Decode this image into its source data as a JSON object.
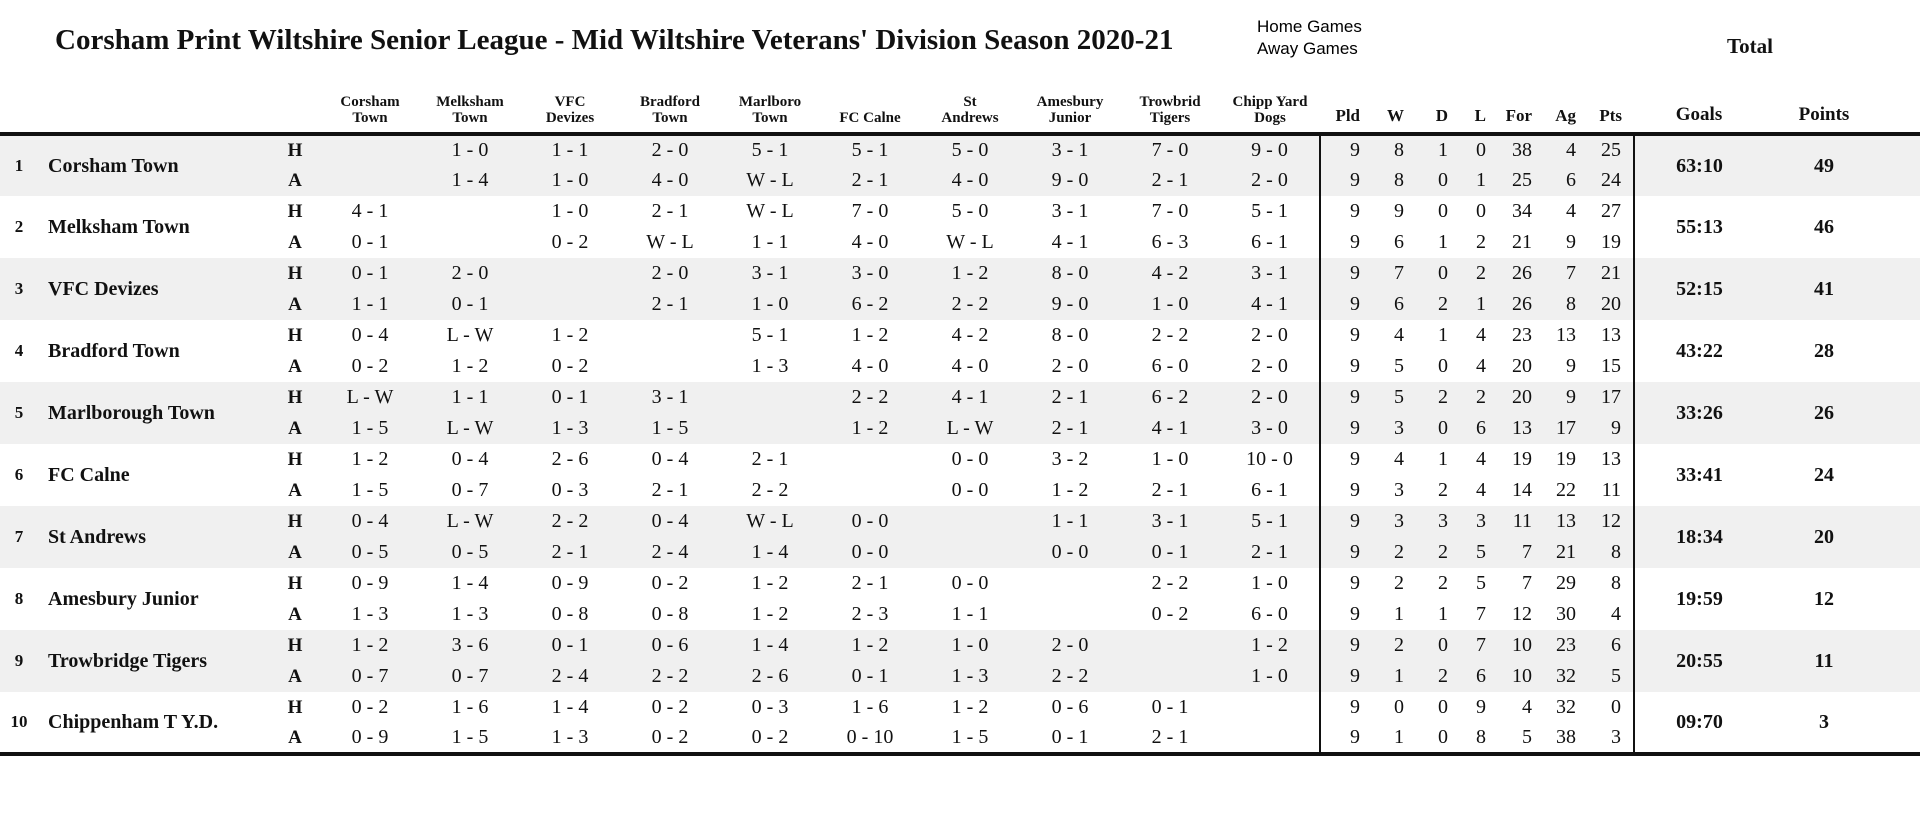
{
  "title": "Corsham Print Wiltshire Senior League - Mid Wiltshire Veterans' Division Season 2020-21",
  "legend": {
    "home": "Home Games",
    "away": "Away Games",
    "total": "Total"
  },
  "row_labels": {
    "home": "H",
    "away": "A"
  },
  "colors": {
    "block_shade": "#f0f0f0",
    "diagonal_shade": "#d8d8d8",
    "rule": "#111111"
  },
  "columns": {
    "opponents": [
      "Corsham\nTown",
      "Melksham\nTown",
      "VFC\nDevizes",
      "Bradford\nTown",
      "Marlboro\nTown",
      "FC Calne",
      "St\nAndrews",
      "Amesbury\nJunior",
      "Trowbrid\nTigers",
      "Chipp Yard\nDogs"
    ],
    "stats": [
      "Pld",
      "W",
      "D",
      "L",
      "For",
      "Ag",
      "Pts"
    ],
    "goals": "Goals",
    "points": "Points"
  },
  "teams": [
    {
      "rank": "1",
      "name": "Corsham Town",
      "home": {
        "scores": [
          "",
          "1 - 0",
          "1 - 1",
          "2 - 0",
          "5 - 1",
          "5 - 1",
          "5 - 0",
          "3 - 1",
          "7 - 0",
          "9 - 0"
        ],
        "stats": [
          "9",
          "8",
          "1",
          "0",
          "38",
          "4",
          "25"
        ]
      },
      "away": {
        "scores": [
          "",
          "1 - 4",
          "1 - 0",
          "4 - 0",
          "W - L",
          "2 - 1",
          "4 - 0",
          "9 - 0",
          "2 - 1",
          "2 - 0"
        ],
        "stats": [
          "9",
          "8",
          "0",
          "1",
          "25",
          "6",
          "24"
        ]
      },
      "goals": "63:10",
      "points": "49"
    },
    {
      "rank": "2",
      "name": "Melksham Town",
      "home": {
        "scores": [
          "4 - 1",
          "",
          "1 - 0",
          "2 - 1",
          "W - L",
          "7 - 0",
          "5 - 0",
          "3 - 1",
          "7 - 0",
          "5 - 1"
        ],
        "stats": [
          "9",
          "9",
          "0",
          "0",
          "34",
          "4",
          "27"
        ]
      },
      "away": {
        "scores": [
          "0 - 1",
          "",
          "0 - 2",
          "W - L",
          "1 - 1",
          "4 - 0",
          "W - L",
          "4 - 1",
          "6 - 3",
          "6 - 1"
        ],
        "stats": [
          "9",
          "6",
          "1",
          "2",
          "21",
          "9",
          "19"
        ]
      },
      "goals": "55:13",
      "points": "46"
    },
    {
      "rank": "3",
      "name": "VFC Devizes",
      "home": {
        "scores": [
          "0 - 1",
          "2 - 0",
          "",
          "2 - 0",
          "3 - 1",
          "3 - 0",
          "1 - 2",
          "8 - 0",
          "4 - 2",
          "3 - 1"
        ],
        "stats": [
          "9",
          "7",
          "0",
          "2",
          "26",
          "7",
          "21"
        ]
      },
      "away": {
        "scores": [
          "1 - 1",
          "0 - 1",
          "",
          "2 - 1",
          "1 - 0",
          "6 - 2",
          "2 - 2",
          "9 - 0",
          "1 - 0",
          "4 - 1"
        ],
        "stats": [
          "9",
          "6",
          "2",
          "1",
          "26",
          "8",
          "20"
        ]
      },
      "goals": "52:15",
      "points": "41"
    },
    {
      "rank": "4",
      "name": "Bradford Town",
      "home": {
        "scores": [
          "0 - 4",
          "L - W",
          "1 - 2",
          "",
          "5 - 1",
          "1 - 2",
          "4 - 2",
          "8 - 0",
          "2 - 2",
          "2 - 0"
        ],
        "stats": [
          "9",
          "4",
          "1",
          "4",
          "23",
          "13",
          "13"
        ]
      },
      "away": {
        "scores": [
          "0 - 2",
          "1 - 2",
          "0 - 2",
          "",
          "1 - 3",
          "4 - 0",
          "4 - 0",
          "2 - 0",
          "6 - 0",
          "2 - 0"
        ],
        "stats": [
          "9",
          "5",
          "0",
          "4",
          "20",
          "9",
          "15"
        ]
      },
      "goals": "43:22",
      "points": "28"
    },
    {
      "rank": "5",
      "name": "Marlborough Town",
      "home": {
        "scores": [
          "L - W",
          "1 - 1",
          "0 - 1",
          "3 - 1",
          "",
          "2 - 2",
          "4 - 1",
          "2 - 1",
          "6 - 2",
          "2 - 0"
        ],
        "stats": [
          "9",
          "5",
          "2",
          "2",
          "20",
          "9",
          "17"
        ]
      },
      "away": {
        "scores": [
          "1 - 5",
          "L - W",
          "1 - 3",
          "1 - 5",
          "",
          "1 - 2",
          "L - W",
          "2 - 1",
          "4 - 1",
          "3 - 0"
        ],
        "stats": [
          "9",
          "3",
          "0",
          "6",
          "13",
          "17",
          "9"
        ]
      },
      "goals": "33:26",
      "points": "26"
    },
    {
      "rank": "6",
      "name": "FC Calne",
      "home": {
        "scores": [
          "1 - 2",
          "0 - 4",
          "2 - 6",
          "0 - 4",
          "2 - 1",
          "",
          "0 - 0",
          "3 - 2",
          "1 - 0",
          "10 - 0"
        ],
        "stats": [
          "9",
          "4",
          "1",
          "4",
          "19",
          "19",
          "13"
        ]
      },
      "away": {
        "scores": [
          "1 - 5",
          "0 - 7",
          "0 - 3",
          "2 - 1",
          "2 - 2",
          "",
          "0 - 0",
          "1 - 2",
          "2 - 1",
          "6 - 1"
        ],
        "stats": [
          "9",
          "3",
          "2",
          "4",
          "14",
          "22",
          "11"
        ]
      },
      "goals": "33:41",
      "points": "24"
    },
    {
      "rank": "7",
      "name": "St Andrews",
      "home": {
        "scores": [
          "0 - 4",
          "L - W",
          "2 - 2",
          "0 - 4",
          "W - L",
          "0 - 0",
          "",
          "1 - 1",
          "3 - 1",
          "5 - 1"
        ],
        "stats": [
          "9",
          "3",
          "3",
          "3",
          "11",
          "13",
          "12"
        ]
      },
      "away": {
        "scores": [
          "0 - 5",
          "0 - 5",
          "2 - 1",
          "2 - 4",
          "1 - 4",
          "0 - 0",
          "",
          "0 - 0",
          "0 - 1",
          "2 - 1"
        ],
        "stats": [
          "9",
          "2",
          "2",
          "5",
          "7",
          "21",
          "8"
        ]
      },
      "goals": "18:34",
      "points": "20"
    },
    {
      "rank": "8",
      "name": "Amesbury Junior",
      "home": {
        "scores": [
          "0 - 9",
          "1 - 4",
          "0 - 9",
          "0 - 2",
          "1 - 2",
          "2 - 1",
          "0 - 0",
          "",
          "2 - 2",
          "1 - 0"
        ],
        "stats": [
          "9",
          "2",
          "2",
          "5",
          "7",
          "29",
          "8"
        ]
      },
      "away": {
        "scores": [
          "1 - 3",
          "1 - 3",
          "0 - 8",
          "0 - 8",
          "1 - 2",
          "2 - 3",
          "1 - 1",
          "",
          "0 - 2",
          "6 - 0"
        ],
        "stats": [
          "9",
          "1",
          "1",
          "7",
          "12",
          "30",
          "4"
        ]
      },
      "goals": "19:59",
      "points": "12"
    },
    {
      "rank": "9",
      "name": "Trowbridge Tigers",
      "home": {
        "scores": [
          "1 - 2",
          "3 - 6",
          "0 - 1",
          "0 - 6",
          "1 - 4",
          "1 - 2",
          "1 - 0",
          "2 - 0",
          "",
          "1 - 2"
        ],
        "stats": [
          "9",
          "2",
          "0",
          "7",
          "10",
          "23",
          "6"
        ]
      },
      "away": {
        "scores": [
          "0 - 7",
          "0 - 7",
          "2 - 4",
          "2 - 2",
          "2 - 6",
          "0 - 1",
          "1 - 3",
          "2 - 2",
          "",
          "1 - 0"
        ],
        "stats": [
          "9",
          "1",
          "2",
          "6",
          "10",
          "32",
          "5"
        ]
      },
      "goals": "20:55",
      "points": "11"
    },
    {
      "rank": "10",
      "name": "Chippenham T Y.D.",
      "home": {
        "scores": [
          "0 - 2",
          "1 - 6",
          "1 - 4",
          "0 - 2",
          "0 - 3",
          "1 - 6",
          "1 - 2",
          "0 - 6",
          "0 - 1",
          ""
        ],
        "stats": [
          "9",
          "0",
          "0",
          "9",
          "4",
          "32",
          "0"
        ]
      },
      "away": {
        "scores": [
          "0 - 9",
          "1 - 5",
          "1 - 3",
          "0 - 2",
          "0 - 2",
          "0 - 10",
          "1 - 5",
          "0 - 1",
          "2 - 1",
          ""
        ],
        "stats": [
          "9",
          "1",
          "0",
          "8",
          "5",
          "38",
          "3"
        ]
      },
      "goals": "09:70",
      "points": "3"
    }
  ]
}
